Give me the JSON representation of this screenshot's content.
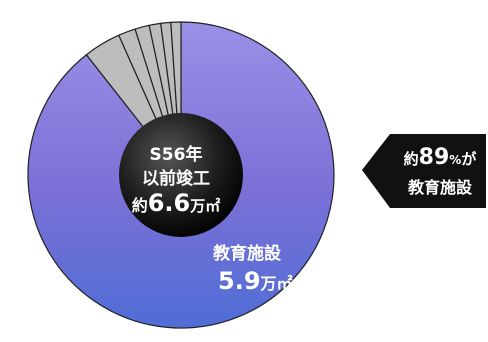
{
  "chart_data": {
    "type": "pie",
    "total": {
      "line1": "S56年",
      "line2": "以前竣工",
      "prefix": "約",
      "value": "6.6",
      "unit": "万㎡"
    },
    "slices": [
      {
        "label": "教育施設",
        "value": 5.9,
        "value_text": "5.9",
        "unit": "万㎡",
        "color": "#7b72d8"
      },
      {
        "value": 0.26,
        "color": "#bdbdbd"
      },
      {
        "value": 0.12,
        "color": "#bdbdbd"
      },
      {
        "value": 0.1,
        "color": "#bdbdbd"
      },
      {
        "value": 0.08,
        "color": "#bdbdbd"
      },
      {
        "value": 0.07,
        "color": "#bdbdbd"
      },
      {
        "value": 0.07,
        "color": "#bdbdbd"
      }
    ],
    "callout": {
      "prefix": "約",
      "percent": "89",
      "percent_unit": "%",
      "suffix": "が",
      "line2": "教育施設"
    }
  }
}
